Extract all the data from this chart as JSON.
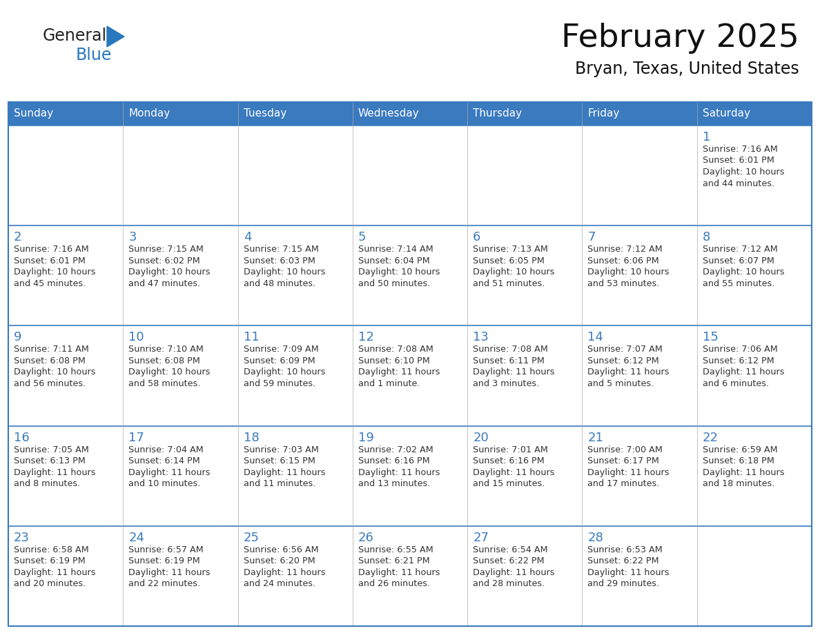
{
  "title": "February 2025",
  "subtitle": "Bryan, Texas, United States",
  "days_of_week": [
    "Sunday",
    "Monday",
    "Tuesday",
    "Wednesday",
    "Thursday",
    "Friday",
    "Saturday"
  ],
  "header_bg": "#3a7abf",
  "header_text": "#ffffff",
  "border_color": "#3a7abf",
  "day_num_color": "#3a7abf",
  "text_color": "#333333",
  "logo_general_color": "#222222",
  "logo_blue_color": "#2878be",
  "weeks": [
    [
      {
        "day": null,
        "info": ""
      },
      {
        "day": null,
        "info": ""
      },
      {
        "day": null,
        "info": ""
      },
      {
        "day": null,
        "info": ""
      },
      {
        "day": null,
        "info": ""
      },
      {
        "day": null,
        "info": ""
      },
      {
        "day": 1,
        "info": "Sunrise: 7:16 AM\nSunset: 6:01 PM\nDaylight: 10 hours\nand 44 minutes."
      }
    ],
    [
      {
        "day": 2,
        "info": "Sunrise: 7:16 AM\nSunset: 6:01 PM\nDaylight: 10 hours\nand 45 minutes."
      },
      {
        "day": 3,
        "info": "Sunrise: 7:15 AM\nSunset: 6:02 PM\nDaylight: 10 hours\nand 47 minutes."
      },
      {
        "day": 4,
        "info": "Sunrise: 7:15 AM\nSunset: 6:03 PM\nDaylight: 10 hours\nand 48 minutes."
      },
      {
        "day": 5,
        "info": "Sunrise: 7:14 AM\nSunset: 6:04 PM\nDaylight: 10 hours\nand 50 minutes."
      },
      {
        "day": 6,
        "info": "Sunrise: 7:13 AM\nSunset: 6:05 PM\nDaylight: 10 hours\nand 51 minutes."
      },
      {
        "day": 7,
        "info": "Sunrise: 7:12 AM\nSunset: 6:06 PM\nDaylight: 10 hours\nand 53 minutes."
      },
      {
        "day": 8,
        "info": "Sunrise: 7:12 AM\nSunset: 6:07 PM\nDaylight: 10 hours\nand 55 minutes."
      }
    ],
    [
      {
        "day": 9,
        "info": "Sunrise: 7:11 AM\nSunset: 6:08 PM\nDaylight: 10 hours\nand 56 minutes."
      },
      {
        "day": 10,
        "info": "Sunrise: 7:10 AM\nSunset: 6:08 PM\nDaylight: 10 hours\nand 58 minutes."
      },
      {
        "day": 11,
        "info": "Sunrise: 7:09 AM\nSunset: 6:09 PM\nDaylight: 10 hours\nand 59 minutes."
      },
      {
        "day": 12,
        "info": "Sunrise: 7:08 AM\nSunset: 6:10 PM\nDaylight: 11 hours\nand 1 minute."
      },
      {
        "day": 13,
        "info": "Sunrise: 7:08 AM\nSunset: 6:11 PM\nDaylight: 11 hours\nand 3 minutes."
      },
      {
        "day": 14,
        "info": "Sunrise: 7:07 AM\nSunset: 6:12 PM\nDaylight: 11 hours\nand 5 minutes."
      },
      {
        "day": 15,
        "info": "Sunrise: 7:06 AM\nSunset: 6:12 PM\nDaylight: 11 hours\nand 6 minutes."
      }
    ],
    [
      {
        "day": 16,
        "info": "Sunrise: 7:05 AM\nSunset: 6:13 PM\nDaylight: 11 hours\nand 8 minutes."
      },
      {
        "day": 17,
        "info": "Sunrise: 7:04 AM\nSunset: 6:14 PM\nDaylight: 11 hours\nand 10 minutes."
      },
      {
        "day": 18,
        "info": "Sunrise: 7:03 AM\nSunset: 6:15 PM\nDaylight: 11 hours\nand 11 minutes."
      },
      {
        "day": 19,
        "info": "Sunrise: 7:02 AM\nSunset: 6:16 PM\nDaylight: 11 hours\nand 13 minutes."
      },
      {
        "day": 20,
        "info": "Sunrise: 7:01 AM\nSunset: 6:16 PM\nDaylight: 11 hours\nand 15 minutes."
      },
      {
        "day": 21,
        "info": "Sunrise: 7:00 AM\nSunset: 6:17 PM\nDaylight: 11 hours\nand 17 minutes."
      },
      {
        "day": 22,
        "info": "Sunrise: 6:59 AM\nSunset: 6:18 PM\nDaylight: 11 hours\nand 18 minutes."
      }
    ],
    [
      {
        "day": 23,
        "info": "Sunrise: 6:58 AM\nSunset: 6:19 PM\nDaylight: 11 hours\nand 20 minutes."
      },
      {
        "day": 24,
        "info": "Sunrise: 6:57 AM\nSunset: 6:19 PM\nDaylight: 11 hours\nand 22 minutes."
      },
      {
        "day": 25,
        "info": "Sunrise: 6:56 AM\nSunset: 6:20 PM\nDaylight: 11 hours\nand 24 minutes."
      },
      {
        "day": 26,
        "info": "Sunrise: 6:55 AM\nSunset: 6:21 PM\nDaylight: 11 hours\nand 26 minutes."
      },
      {
        "day": 27,
        "info": "Sunrise: 6:54 AM\nSunset: 6:22 PM\nDaylight: 11 hours\nand 28 minutes."
      },
      {
        "day": 28,
        "info": "Sunrise: 6:53 AM\nSunset: 6:22 PM\nDaylight: 11 hours\nand 29 minutes."
      },
      {
        "day": null,
        "info": ""
      }
    ]
  ]
}
